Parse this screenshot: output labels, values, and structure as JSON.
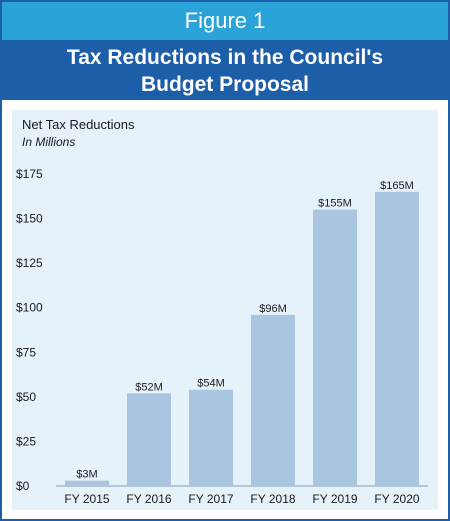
{
  "figure_label": "Figure 1",
  "title_lines": [
    "Tax Reductions in the Council's",
    "Budget Proposal"
  ],
  "colors": {
    "figure_banner": "#2aa3d9",
    "title_banner": "#1d5ea8",
    "plot_bg": "#e6f2fa",
    "bar": "#a9c5e0"
  },
  "chart_data": {
    "type": "bar",
    "title": "Tax Reductions in the Council's Budget Proposal",
    "ylabel": "Net Tax Reductions",
    "yunit": "In Millions",
    "xlabel": "",
    "categories": [
      "FY 2015",
      "FY 2016",
      "FY 2017",
      "FY 2018",
      "FY 2019",
      "FY 2020"
    ],
    "values": [
      3,
      52,
      54,
      96,
      155,
      165
    ],
    "data_labels": [
      "$3M",
      "$52M",
      "$54M",
      "$96M",
      "$155M",
      "$165M"
    ],
    "ylim": [
      0,
      175
    ],
    "yticks": [
      0,
      25,
      50,
      75,
      100,
      125,
      150,
      175
    ],
    "ytick_labels": [
      "$0",
      "$25",
      "$50",
      "$75",
      "$100",
      "$125",
      "$150",
      "$175"
    ],
    "grid": false,
    "legend": "none"
  }
}
